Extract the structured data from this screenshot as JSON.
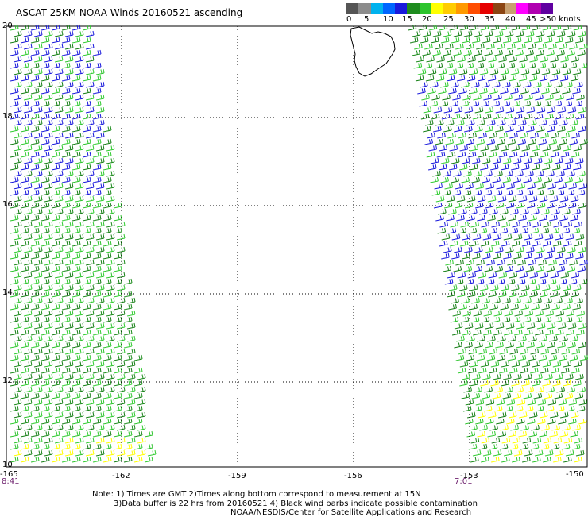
{
  "title": "ASCAT 25KM NOAA Winds 20160521 ascending",
  "legend": {
    "labels": [
      "0",
      "5",
      "10",
      "15",
      "20",
      "25",
      "30",
      "35",
      "40",
      "45",
      ">50 knots"
    ],
    "colors": [
      "#555555",
      "#8c8c8c",
      "#00b2ee",
      "#0066ff",
      "#1a1adc",
      "#1e8c1e",
      "#2ec42e",
      "#ffff00",
      "#ffcc00",
      "#ff9900",
      "#ff4d00",
      "#e60000",
      "#8b4513",
      "#c8a070",
      "#ff00ff",
      "#b000b0",
      "#6000a0"
    ]
  },
  "map": {
    "lon_ticks": [
      "-165",
      "-162",
      "-159",
      "-156",
      "-153",
      "-150"
    ],
    "lat_ticks": [
      "20",
      "18",
      "16",
      "14",
      "12",
      "10"
    ],
    "pass_times": [
      "8:41",
      "7:01"
    ]
  },
  "notes": {
    "line1": "Note: 1) Times are GMT 2)Times along bottom correspond to measurement at 15N",
    "line2": "3)Data buffer is 22 hrs from 20160521 4) Black wind barbs indicate possible contamination",
    "line3": "NOAA/NESDIS/Center for Satellite Applications and Research"
  }
}
